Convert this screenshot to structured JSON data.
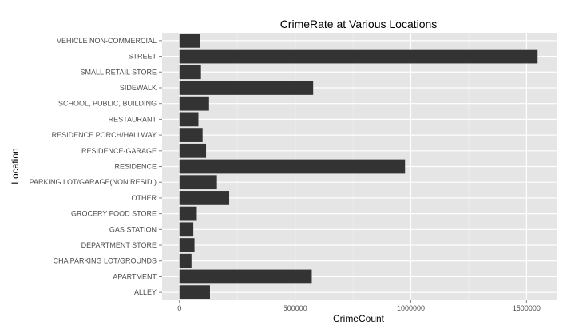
{
  "chart_data": {
    "type": "bar",
    "orientation": "horizontal",
    "title": "CrimeRate at Various Locations",
    "xlabel": "CrimeCount",
    "ylabel": "Location",
    "categories": [
      "ALLEY",
      "APARTMENT",
      "CHA PARKING LOT/GROUNDS",
      "DEPARTMENT STORE",
      "GAS STATION",
      "GROCERY FOOD STORE",
      "OTHER",
      "PARKING LOT/GARAGE(NON.RESID.)",
      "RESIDENCE",
      "RESIDENCE-GARAGE",
      "RESIDENCE PORCH/HALLWAY",
      "RESTAURANT",
      "SCHOOL, PUBLIC, BUILDING",
      "SIDEWALK",
      "SMALL RETAIL STORE",
      "STREET",
      "VEHICLE NON-COMMERCIAL"
    ],
    "values": [
      132000,
      572000,
      52000,
      65000,
      60000,
      75000,
      215000,
      162000,
      975000,
      115000,
      100000,
      82000,
      128000,
      578000,
      93000,
      1548000,
      90000
    ],
    "xlim": [
      -75000,
      1630000
    ],
    "xticks": [
      0,
      500000,
      1000000,
      1500000
    ],
    "xtick_labels": [
      "0",
      "500000",
      "1000000",
      "1500000"
    ],
    "grid": true,
    "colors": {
      "panel_background": "#e5e5e5",
      "grid_major": "#ffffff",
      "grid_minor": "#f2f2f2",
      "bar_fill": "#333333",
      "tick_text": "#4d4d4d",
      "text": "#000000"
    }
  }
}
